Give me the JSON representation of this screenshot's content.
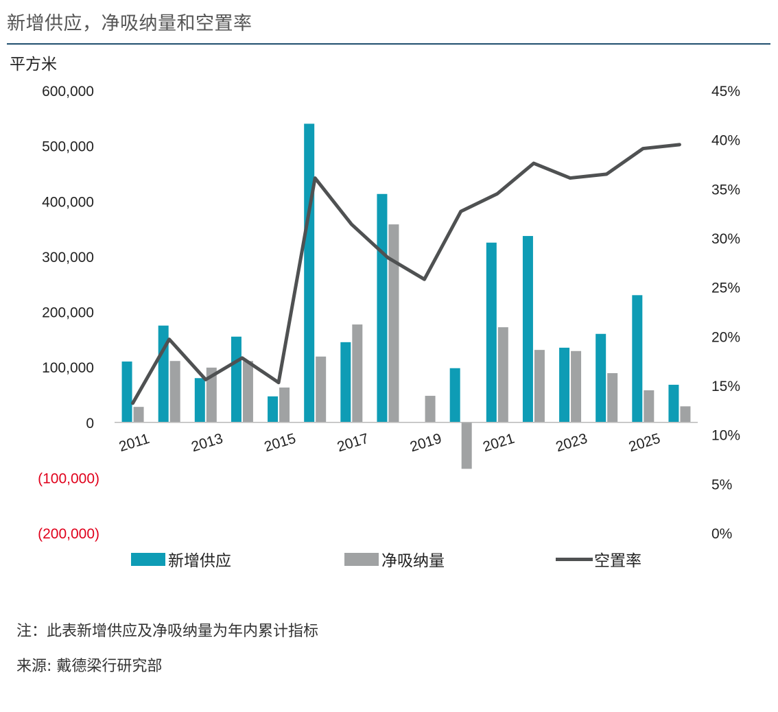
{
  "title": "新增供应，净吸纳量和空置率",
  "unit_label": "平方米",
  "legend": {
    "supply": "新增供应",
    "absorption": "净吸纳量",
    "vacancy": "空置率"
  },
  "notes": {
    "note": "注：此表新增供应及净吸纳量为年内累计指标",
    "source": "来源: 戴德梁行研究部"
  },
  "colors": {
    "supply": "#0e9cb5",
    "absorption": "#a0a2a3",
    "vacancy": "#4f5152",
    "negative_tick": "#e0001b"
  },
  "chart_data": {
    "type": "bar",
    "title": "新增供应，净吸纳量和空置率",
    "ylabel": "平方米",
    "categories": [
      "2011",
      "2012",
      "2013",
      "2014",
      "2015",
      "2016",
      "2017",
      "2018",
      "2019",
      "2020",
      "2021",
      "2022",
      "2023",
      "2024",
      "2025",
      "2026"
    ],
    "x_tick_labels": [
      "2011",
      "",
      "2013",
      "",
      "2015",
      "",
      "2017",
      "",
      "2019",
      "",
      "2021",
      "",
      "2023",
      "",
      "2025",
      ""
    ],
    "ylim": [
      -200000,
      600000
    ],
    "y_ticks": [
      600000,
      500000,
      400000,
      300000,
      200000,
      100000,
      0,
      -100000,
      -200000
    ],
    "y_tick_labels": [
      "600,000",
      "500,000",
      "400,000",
      "300,000",
      "200,000",
      "100,000",
      "0",
      "(100,000)",
      "(200,000)"
    ],
    "y2lim": [
      0,
      45
    ],
    "y2_ticks": [
      45,
      40,
      35,
      30,
      25,
      20,
      15,
      10,
      5,
      0
    ],
    "y2_tick_labels": [
      "45%",
      "40%",
      "35%",
      "30%",
      "25%",
      "20%",
      "15%",
      "10%",
      "5%",
      "0%"
    ],
    "series": [
      {
        "name": "新增供应",
        "type": "bar",
        "axis": "left",
        "values": [
          110000,
          175000,
          80000,
          155000,
          47000,
          540000,
          145000,
          413000,
          0,
          98000,
          325000,
          337000,
          135000,
          160000,
          230000,
          68000
        ]
      },
      {
        "name": "净吸纳量",
        "type": "bar",
        "axis": "left",
        "values": [
          28000,
          111000,
          99000,
          111000,
          63000,
          119000,
          177000,
          358000,
          48000,
          -84000,
          172000,
          131000,
          129000,
          89000,
          58000,
          29000
        ]
      },
      {
        "name": "空置率",
        "type": "line",
        "axis": "right",
        "values": [
          13.2,
          19.7,
          15.6,
          17.8,
          15.3,
          36.1,
          31.4,
          28.0,
          25.8,
          32.7,
          34.5,
          37.6,
          36.1,
          36.5,
          39.1,
          39.5
        ]
      }
    ],
    "grid": false,
    "legend_position": "bottom"
  }
}
